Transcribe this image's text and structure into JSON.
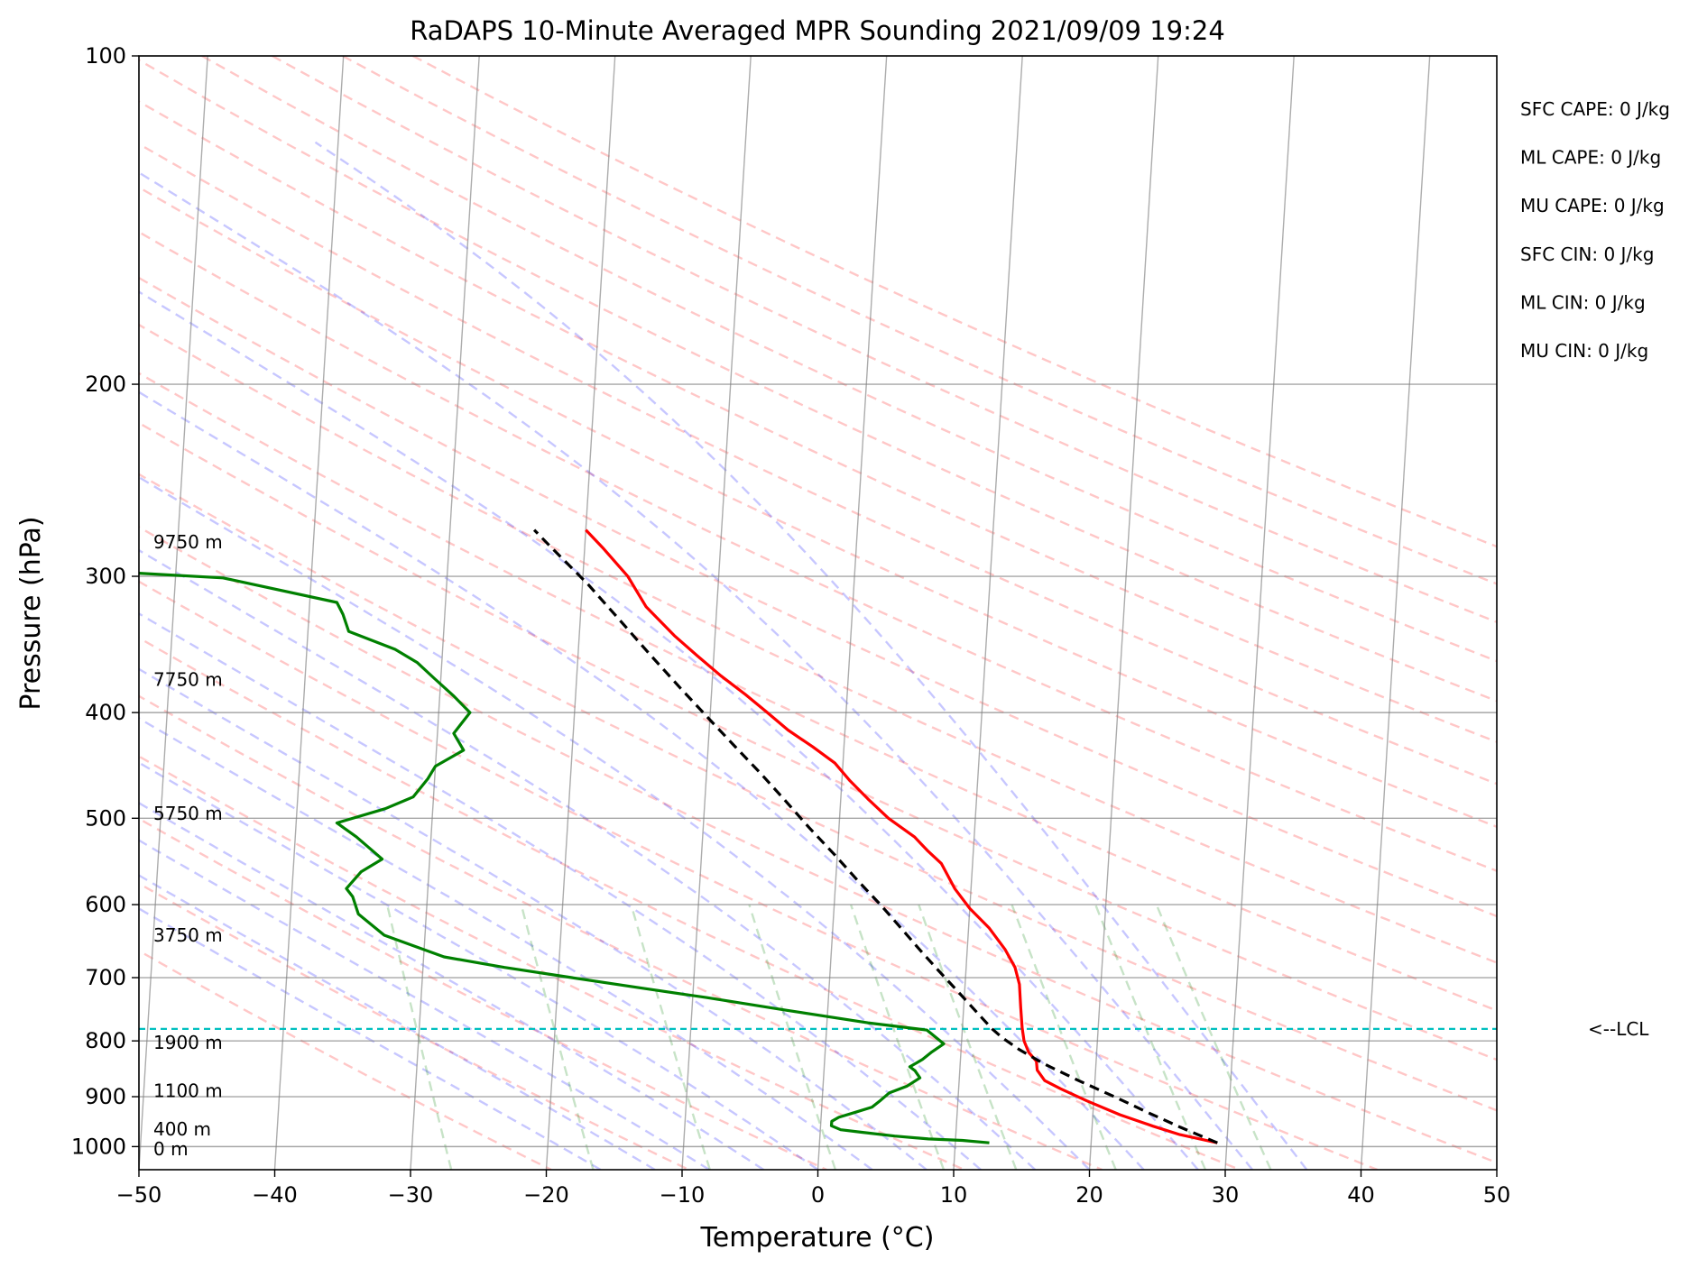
{
  "chart_data": {
    "type": "line",
    "title": "RaDAPS 10-Minute Averaged MPR Sounding 2021/09/09 19:24",
    "xlabel": "Temperature (°C)",
    "ylabel": "Pressure (hPa)",
    "xlim": [
      -50,
      50
    ],
    "ylim": [
      1050,
      100
    ],
    "y_scale": "log",
    "x_ticks": [
      "−50",
      "−40",
      "−30",
      "−20",
      "−10",
      "0",
      "10",
      "20",
      "30",
      "40",
      "50"
    ],
    "y_ticks": [
      "100",
      "200",
      "300",
      "400",
      "500",
      "600",
      "700",
      "800",
      "900",
      "1000"
    ],
    "grid": true,
    "series": [
      {
        "color": "#ff0000",
        "points": [
          [
            29.3,
            992
          ],
          [
            26.5,
            975
          ],
          [
            24.5,
            958
          ],
          [
            22.0,
            935
          ],
          [
            19.5,
            908
          ],
          [
            17.5,
            885
          ],
          [
            16.3,
            870
          ],
          [
            15.7,
            851
          ],
          [
            15.6,
            835
          ],
          [
            15.0,
            820
          ],
          [
            14.6,
            800
          ],
          [
            14.4,
            778
          ],
          [
            14.2,
            745
          ],
          [
            14.0,
            710
          ],
          [
            13.6,
            685
          ],
          [
            12.8,
            660
          ],
          [
            11.5,
            630
          ],
          [
            10.0,
            605
          ],
          [
            8.8,
            580
          ],
          [
            7.7,
            550
          ],
          [
            6.6,
            535
          ],
          [
            5.6,
            520
          ],
          [
            3.6,
            500
          ],
          [
            2.0,
            480
          ],
          [
            0.6,
            462
          ],
          [
            -0.6,
            445
          ],
          [
            -2.3,
            430
          ],
          [
            -4.2,
            415
          ],
          [
            -5.8,
            400
          ],
          [
            -7.5,
            385
          ],
          [
            -9.4,
            370
          ],
          [
            -11.2,
            355
          ],
          [
            -13.0,
            340
          ],
          [
            -15.2,
            320
          ],
          [
            -16.7,
            300
          ],
          [
            -18.6,
            283
          ],
          [
            -20.0,
            272
          ]
        ]
      },
      {
        "color": "#008000",
        "points": [
          [
            12.5,
            992
          ],
          [
            10.5,
            987
          ],
          [
            8.0,
            984
          ],
          [
            5.5,
            978
          ],
          [
            3.0,
            970
          ],
          [
            1.5,
            965
          ],
          [
            0.8,
            957
          ],
          [
            0.8,
            948
          ],
          [
            1.3,
            940
          ],
          [
            2.5,
            930
          ],
          [
            3.7,
            920
          ],
          [
            4.3,
            907
          ],
          [
            4.9,
            893
          ],
          [
            6.2,
            880
          ],
          [
            7.1,
            865
          ],
          [
            6.7,
            852
          ],
          [
            6.3,
            845
          ],
          [
            7.2,
            832
          ],
          [
            7.8,
            820
          ],
          [
            8.7,
            805
          ],
          [
            7.4,
            782
          ],
          [
            3.0,
            770
          ],
          [
            -3.0,
            750
          ],
          [
            -9.0,
            730
          ],
          [
            -14.0,
            715
          ],
          [
            -19.0,
            700
          ],
          [
            -24.0,
            685
          ],
          [
            -28.5,
            670
          ],
          [
            -33.0,
            640
          ],
          [
            -35.0,
            612
          ],
          [
            -35.5,
            590
          ],
          [
            -36.0,
            580
          ],
          [
            -35.0,
            560
          ],
          [
            -33.5,
            545
          ],
          [
            -35.5,
            520
          ],
          [
            -37.0,
            505
          ],
          [
            -33.5,
            490
          ],
          [
            -31.5,
            478
          ],
          [
            -30.5,
            460
          ],
          [
            -30.0,
            448
          ],
          [
            -28.0,
            433
          ],
          [
            -28.8,
            418
          ],
          [
            -27.7,
            400
          ],
          [
            -29.0,
            386
          ],
          [
            -30.5,
            372
          ],
          [
            -31.8,
            360
          ],
          [
            -33.5,
            350
          ],
          [
            -37.0,
            337
          ],
          [
            -37.5,
            325
          ],
          [
            -38.0,
            317
          ],
          [
            -46.5,
            301
          ],
          [
            -55.0,
            297
          ]
        ]
      },
      {
        "color": "#000000",
        "dashed": true,
        "points": [
          [
            29.3,
            992
          ],
          [
            26.5,
            960
          ],
          [
            24.0,
            930
          ],
          [
            21.5,
            900
          ],
          [
            18.8,
            870
          ],
          [
            16.2,
            840
          ],
          [
            14.3,
            815
          ],
          [
            13.0,
            795
          ],
          [
            12.2,
            780
          ],
          [
            11.3,
            760
          ],
          [
            9.7,
            725
          ],
          [
            8.0,
            690
          ],
          [
            6.5,
            660
          ],
          [
            5.0,
            630
          ],
          [
            3.4,
            600
          ],
          [
            1.6,
            570
          ],
          [
            -0.2,
            540
          ],
          [
            -2.2,
            510
          ],
          [
            -4.2,
            480
          ],
          [
            -6.0,
            455
          ],
          [
            -8.0,
            430
          ],
          [
            -10.1,
            405
          ],
          [
            -12.3,
            380
          ],
          [
            -14.6,
            355
          ],
          [
            -17.0,
            330
          ],
          [
            -19.6,
            305
          ],
          [
            -22.5,
            282
          ],
          [
            -23.8,
            272
          ]
        ]
      }
    ],
    "lcl_pressure": 780,
    "lcl_label": "<--LCL",
    "height_labels": [
      {
        "text": "9750 m",
        "p": 279
      },
      {
        "text": "7750 m",
        "p": 373
      },
      {
        "text": "5750 m",
        "p": 495
      },
      {
        "text": "3750 m",
        "p": 640
      },
      {
        "text": "1900 m",
        "p": 803
      },
      {
        "text": "1100 m",
        "p": 889
      },
      {
        "text": "400 m",
        "p": 964
      },
      {
        "text": "0 m",
        "p": 1005
      }
    ],
    "indices": [
      "SFC CAPE: 0 J/kg",
      "ML CAPE: 0 J/kg",
      "MU CAPE: 0 J/kg",
      "SFC CIN: 0 J/kg",
      "ML CIN: 0 J/kg",
      "MU CIN: 0 J/kg"
    ]
  }
}
